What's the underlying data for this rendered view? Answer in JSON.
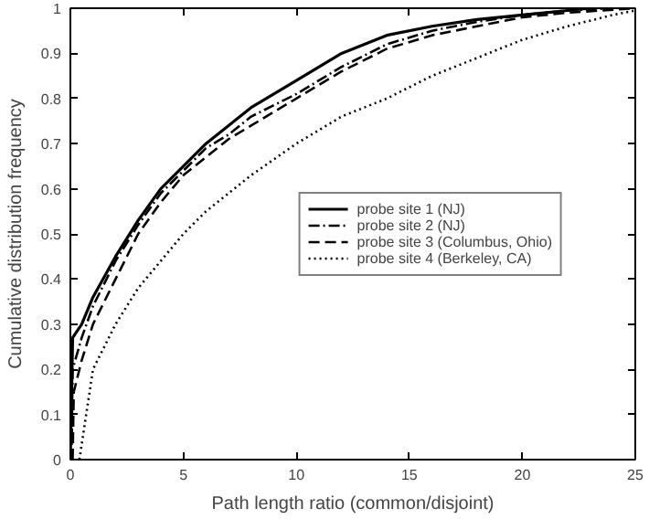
{
  "chart_data": {
    "type": "line",
    "xlabel": "Path length ratio (common/disjoint)",
    "ylabel": "Cumulative distribution frequency",
    "xlim": [
      0,
      25
    ],
    "ylim": [
      0,
      1
    ],
    "xticks": [
      0,
      5,
      10,
      15,
      20,
      25
    ],
    "yticks": [
      0,
      0.1,
      0.2,
      0.3,
      0.4,
      0.5,
      0.6,
      0.7,
      0.8,
      0.9,
      1
    ],
    "grid": false,
    "legend": "right",
    "marker": "none",
    "x": [
      0,
      0.1,
      0.5,
      1,
      2,
      3,
      4,
      5,
      6,
      7,
      8,
      10,
      12,
      14,
      16,
      18,
      20,
      22,
      23
    ],
    "series": [
      {
        "name": "probe site 1 (NJ)",
        "color": "#000000",
        "line_style": "solid",
        "values": [
          0,
          0.27,
          0.3,
          0.36,
          0.45,
          0.53,
          0.6,
          0.65,
          0.7,
          0.74,
          0.78,
          0.84,
          0.9,
          0.94,
          0.96,
          0.975,
          0.985,
          0.995,
          1
        ]
      },
      {
        "name": "probe site 2 (NJ)",
        "color": "#000000",
        "line_style": "dashdot",
        "x": [
          0.05,
          0.1,
          0.5,
          1,
          2,
          3,
          4,
          5,
          6,
          7,
          8,
          10,
          12,
          14,
          16,
          18,
          20,
          22,
          24
        ],
        "values": [
          0,
          0.2,
          0.27,
          0.34,
          0.44,
          0.52,
          0.59,
          0.64,
          0.69,
          0.72,
          0.76,
          0.81,
          0.87,
          0.92,
          0.95,
          0.97,
          0.985,
          0.995,
          1
        ]
      },
      {
        "name": "probe site 3 (Columbus, Ohio)",
        "color": "#000000",
        "line_style": "dashed",
        "x": [
          0.1,
          0.15,
          0.5,
          1,
          2,
          3,
          4,
          5,
          6,
          7,
          8,
          10,
          12,
          14,
          16,
          18,
          20,
          22,
          25
        ],
        "values": [
          0,
          0.15,
          0.22,
          0.3,
          0.4,
          0.5,
          0.57,
          0.63,
          0.67,
          0.71,
          0.74,
          0.8,
          0.86,
          0.91,
          0.94,
          0.96,
          0.98,
          0.99,
          1
        ]
      },
      {
        "name": "probe site 4 (Berkeley, CA)",
        "color": "#000000",
        "line_style": "dotted",
        "x": [
          0.4,
          1,
          2,
          3,
          4,
          5,
          6,
          8,
          10,
          12,
          14,
          16,
          18,
          20,
          22,
          24,
          25
        ],
        "values": [
          0,
          0.2,
          0.3,
          0.38,
          0.44,
          0.5,
          0.55,
          0.63,
          0.7,
          0.76,
          0.8,
          0.85,
          0.89,
          0.93,
          0.96,
          0.985,
          0.995
        ]
      }
    ]
  }
}
